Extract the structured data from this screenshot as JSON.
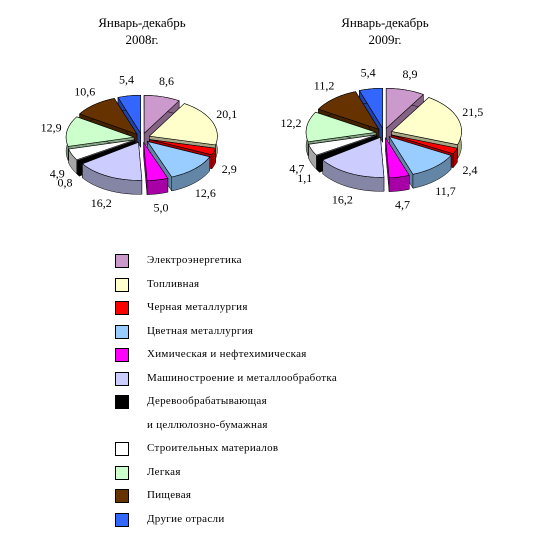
{
  "chart_data": [
    {
      "type": "pie",
      "title": "Январь-декабрь\n2008г.",
      "categories": [
        "Электроэнергетика",
        "Топливная",
        "Черная металлургия",
        "Цветная металлургия",
        "Химическая и нефтехимическая",
        "Машиностроение и металлообработка",
        "Деревообрабатывающая\nи целлюлозно-бумажная",
        "Строительных материалов",
        "Легкая",
        "Пищевая",
        "Другие отрасли"
      ],
      "values": [
        8.6,
        20.1,
        2.9,
        12.6,
        5.0,
        16.2,
        0.8,
        4.9,
        12.9,
        10.6,
        5.4
      ],
      "value_labels": [
        "8,6",
        "20,1",
        "2,9",
        "12,6",
        "5,0",
        "16,2",
        "0,8",
        "4,9",
        "12,9",
        "10,6",
        "5,4"
      ],
      "colors": [
        "#cc99cc",
        "#ffffcc",
        "#ff0000",
        "#99ccff",
        "#ff00ff",
        "#ccccff",
        "#000000",
        "#ffffff",
        "#ccffcc",
        "#663300",
        "#3366ff"
      ]
    },
    {
      "type": "pie",
      "title": "Январь-декабрь\n2009г.",
      "categories": [
        "Электроэнергетика",
        "Топливная",
        "Черная металлургия",
        "Цветная металлургия",
        "Химическая и нефтехимическая",
        "Машиностроение и металлообработка",
        "Деревообрабатывающая\nи целлюлозно-бумажная",
        "Строительных материалов",
        "Легкая",
        "Пищевая",
        "Другие отрасли"
      ],
      "values": [
        8.9,
        21.5,
        2.4,
        11.7,
        4.7,
        16.2,
        1.1,
        4.7,
        12.2,
        11.2,
        5.4
      ],
      "value_labels": [
        "8,9",
        "21,5",
        "2,4",
        "11,7",
        "4,7",
        "16,2",
        "1,1",
        "4,7",
        "12,2",
        "11,2",
        "5,4"
      ],
      "colors": [
        "#cc99cc",
        "#ffffcc",
        "#ff0000",
        "#99ccff",
        "#ff00ff",
        "#ccccff",
        "#000000",
        "#ffffff",
        "#ccffcc",
        "#663300",
        "#3366ff"
      ]
    }
  ]
}
